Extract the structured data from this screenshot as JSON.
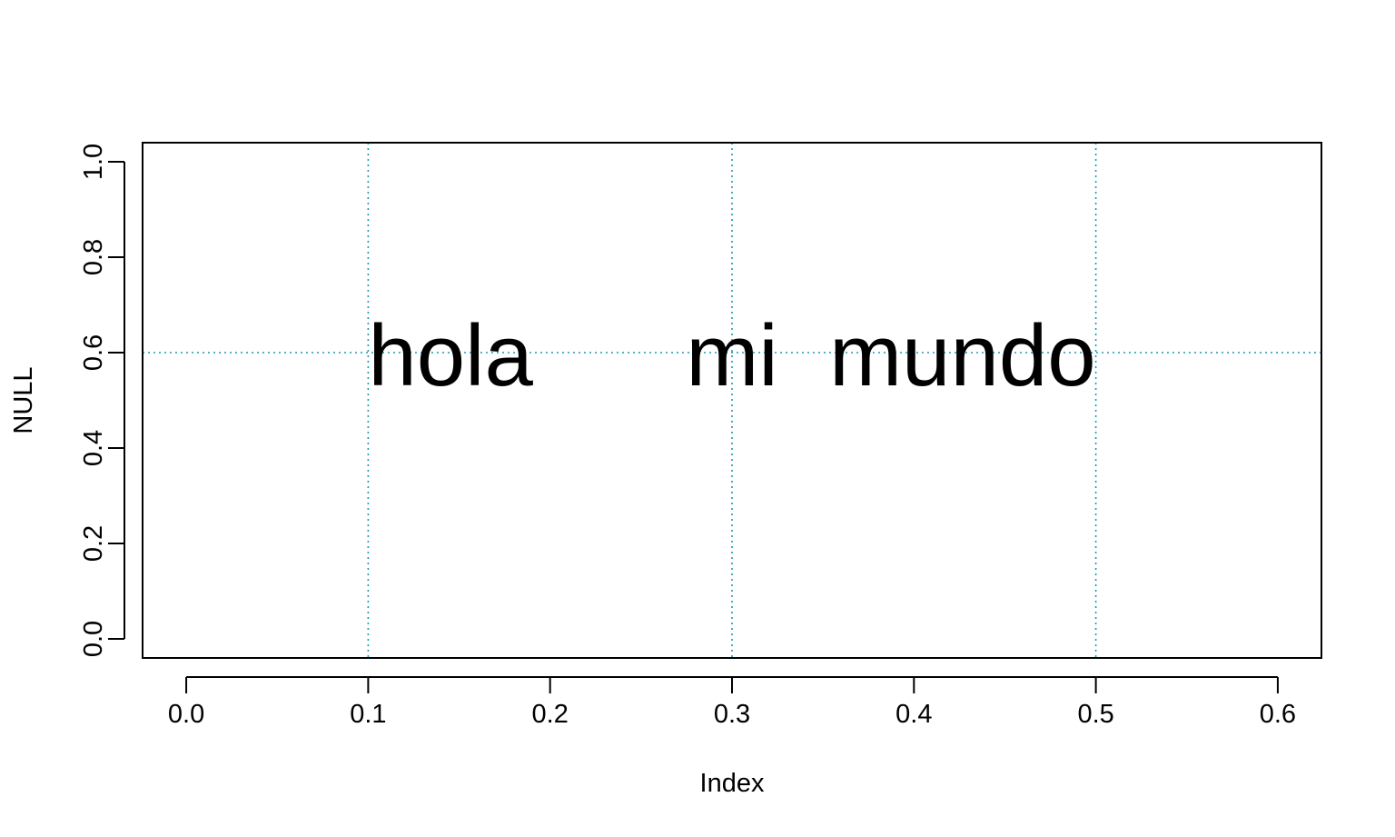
{
  "chart_data": {
    "type": "scatter",
    "title": "",
    "xlabel": "Index",
    "ylabel": "NULL",
    "xlim": [
      -0.024,
      0.624
    ],
    "ylim": [
      -0.04,
      1.04
    ],
    "xticks": [
      0.0,
      0.1,
      0.2,
      0.3,
      0.4,
      0.5,
      0.6
    ],
    "xtick_labels": [
      "0.0",
      "0.1",
      "0.2",
      "0.3",
      "0.4",
      "0.5",
      "0.6"
    ],
    "yticks": [
      0.0,
      0.2,
      0.4,
      0.6,
      0.8,
      1.0
    ],
    "ytick_labels": [
      "0.0",
      "0.2",
      "0.4",
      "0.6",
      "0.8",
      "1.0"
    ],
    "grid": false,
    "vlines": [
      0.1,
      0.3,
      0.5
    ],
    "hlines": [
      0.6
    ],
    "guide_color": "#1a9ab0",
    "annotations": [
      {
        "text": "hola",
        "x": 0.1,
        "y": 0.6,
        "anchor": "start"
      },
      {
        "text": "mi",
        "x": 0.3,
        "y": 0.6,
        "anchor": "middle"
      },
      {
        "text": "mundo",
        "x": 0.5,
        "y": 0.6,
        "anchor": "end"
      }
    ]
  }
}
